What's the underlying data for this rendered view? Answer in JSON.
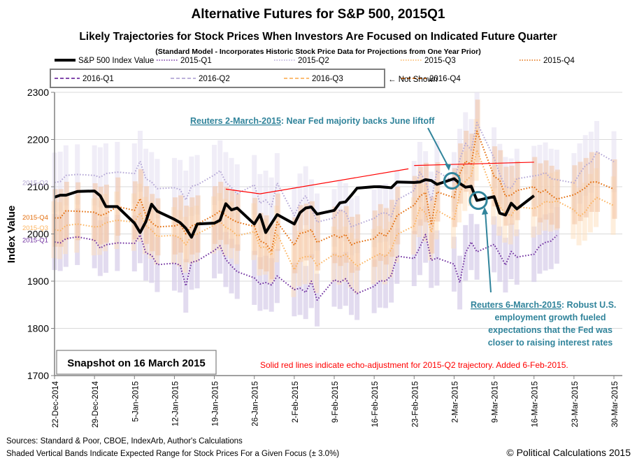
{
  "chart_data": {
    "type": "line",
    "title": "Alternative Futures for S&P 500, 2015Q1",
    "subtitle": "Likely Trajectories for Stock Prices When Investors Are Focused on Indicated Future Quarter",
    "subsubtitle": "(Standard Model - Incorporates Historic Stock Price Data for Projections from One Year Prior)",
    "xlabel": "",
    "ylabel": "Index Value",
    "ylim": [
      1700,
      2300
    ],
    "yticks": [
      1700,
      1800,
      1900,
      2000,
      2100,
      2200,
      2300
    ],
    "xticks": [
      "22-Dec-2014",
      "29-Dec-2014",
      "5-Jan-2015",
      "12-Jan-2015",
      "19-Jan-2015",
      "26-Jan-2015",
      "2-Feb-2015",
      "9-Feb-2015",
      "16-Feb-2015",
      "23-Feb-2015",
      "2-Mar-2015",
      "9-Mar-2015",
      "16-Mar-2015",
      "23-Mar-2015",
      "30-Mar-2015"
    ],
    "x_range_days": [
      0,
      98
    ],
    "grid": true,
    "legend": {
      "placement": "top",
      "row1": [
        {
          "label": "S&P 500 Index Value",
          "color": "#000000",
          "style": "solid"
        },
        {
          "label": "2015-Q1",
          "color": "#7030a0",
          "style": "dotted"
        },
        {
          "label": "2015-Q2",
          "color": "#b4a7d6",
          "style": "dotted"
        },
        {
          "label": "2015-Q3",
          "color": "#fcb461",
          "style": "dotted"
        },
        {
          "label": "2015-Q4",
          "color": "#e36c0a",
          "style": "dotted"
        }
      ],
      "row2": [
        {
          "label": "2016-Q1",
          "color": "#7030a0",
          "style": "dashed"
        },
        {
          "label": "2016-Q2",
          "color": "#b4a7d6",
          "style": "dashed"
        },
        {
          "label": "2016-Q3",
          "color": "#fcb461",
          "style": "dashed"
        },
        {
          "label": "2016-Q4",
          "color": "#e36c0a",
          "style": "dashed"
        }
      ],
      "row2_note": "← Not Shown"
    },
    "series_labels_left": [
      {
        "label": "2015-Q2",
        "value": 2110,
        "color": "#b4a7d6"
      },
      {
        "label": "2015-Q4",
        "value": 2036,
        "color": "#e36c0a"
      },
      {
        "label": "2015-Q3",
        "value": 2014,
        "color": "#fcb461"
      },
      {
        "label": "2015-Q1",
        "value": 1988,
        "color": "#7030a0"
      }
    ],
    "band_pct": 3.0,
    "x": [
      0,
      1,
      2,
      4,
      7,
      8,
      9,
      11,
      14,
      15,
      16,
      17,
      18,
      21,
      22,
      23,
      24,
      25,
      28,
      29,
      30,
      31,
      32,
      35,
      36,
      37,
      38,
      39,
      42,
      43,
      44,
      45,
      46,
      49,
      50,
      51,
      52,
      53,
      56,
      57,
      58,
      59,
      60,
      63,
      64,
      65,
      66,
      67,
      70,
      71,
      72,
      73,
      74,
      77,
      78,
      79,
      80,
      81,
      84,
      85,
      86,
      87,
      88,
      91,
      92,
      93,
      94,
      95,
      98
    ],
    "series": [
      {
        "name": "S&P 500 Index Value",
        "color": "#000000",
        "values": [
          2078,
          2082,
          2082,
          2090,
          2091,
          2081,
          2058,
          2058,
          2023,
          2003,
          2026,
          2063,
          2048,
          2031,
          2024,
          2012,
          1993,
          2021,
          2023,
          2029,
          2064,
          2051,
          2055,
          2021,
          2041,
          2003,
          2022,
          2041,
          2021,
          2045,
          2055,
          2057,
          2042,
          2050,
          2066,
          2068,
          2082,
          2097,
          2100,
          2100,
          2099,
          2098,
          2110,
          2109,
          2110,
          2115,
          2113,
          2105,
          2117,
          2107,
          2099,
          2101,
          2071,
          2079,
          2044,
          2040,
          2065,
          2053,
          2081,
          null,
          null,
          null,
          null,
          null,
          null,
          null,
          null,
          null,
          null
        ]
      },
      {
        "name": "2015-Q1",
        "color": "#7030a0",
        "values": [
          1983,
          1981,
          1990,
          1994,
          1987,
          1970,
          1977,
          1981,
          1980,
          1998,
          1960,
          1955,
          1935,
          1938,
          1934,
          1890,
          1940,
          1943,
          1965,
          1975,
          1946,
          1932,
          1920,
          1907,
          1894,
          1897,
          1892,
          1911,
          1882,
          1885,
          1876,
          1900,
          1860,
          1903,
          1898,
          1905,
          1885,
          1874,
          1889,
          1901,
          1900,
          1912,
          1953,
          1948,
          1972,
          1999,
          1944,
          1949,
          1936,
          1897,
          1960,
          1983,
          1962,
          1978,
          1957,
          1934,
          1963,
          1951,
          1957,
          1975,
          1982,
          1985,
          1997,
          null,
          null,
          null,
          null,
          null,
          null
        ]
      },
      {
        "name": "2015-Q2",
        "color": "#b4a7d6",
        "values": [
          2109,
          2111,
          2124,
          2126,
          2124,
          2120,
          2128,
          2131,
          2128,
          2154,
          2117,
          2110,
          2096,
          2098,
          2094,
          2072,
          2101,
          2104,
          2125,
          2134,
          2110,
          2098,
          2085,
          2104,
          2065,
          2072,
          2058,
          2108,
          2039,
          2066,
          2081,
          2054,
          2025,
          2034,
          2051,
          2046,
          2015,
          2020,
          2033,
          2043,
          2045,
          2037,
          2072,
          2092,
          2131,
          2112,
          2070,
          2133,
          2110,
          2158,
          2192,
          2178,
          2236,
          2161,
          2127,
          2100,
          2097,
          2117,
          2123,
          2125,
          2130,
          2117,
          2115,
          2108,
          2128,
          2145,
          2152,
          2174,
          2153
        ]
      },
      {
        "name": "2015-Q3",
        "color": "#fcb461",
        "values": [
          2009,
          2007,
          2018,
          2021,
          2015,
          2016,
          2024,
          2029,
          2025,
          2045,
          2018,
          2008,
          1995,
          1997,
          1991,
          1977,
          1997,
          2000,
          2019,
          2026,
          2014,
          2008,
          1996,
          2005,
          1971,
          1973,
          1955,
          2000,
          1924,
          1948,
          1952,
          1952,
          1933,
          1957,
          1951,
          1957,
          1944,
          1932,
          1952,
          1958,
          1952,
          1967,
          1999,
          2017,
          2055,
          2045,
          2004,
          2050,
          2030,
          2087,
          2112,
          2123,
          2178,
          2082,
          2058,
          2043,
          2039,
          2057,
          2054,
          2060,
          2069,
          2067,
          2070,
          2051,
          2037,
          2047,
          2065,
          2077,
          2060
        ]
      },
      {
        "name": "2015-Q4",
        "color": "#e36c0a",
        "values": [
          2034,
          2034,
          2049,
          2048,
          2046,
          2039,
          2043,
          2058,
          2050,
          2075,
          2040,
          2024,
          2015,
          2017,
          2021,
          2000,
          2017,
          2021,
          2040,
          2049,
          2039,
          2031,
          2025,
          2016,
          1985,
          1980,
          1963,
          2025,
          1976,
          2001,
          2004,
          2009,
          1982,
          1998,
          1992,
          1999,
          1977,
          1982,
          1990,
          2003,
          1995,
          2012,
          2039,
          2061,
          2080,
          2088,
          2019,
          2089,
          2077,
          2128,
          2154,
          2148,
          2218,
          2122,
          2114,
          2080,
          2082,
          2092,
          2100,
          2087,
          2093,
          2082,
          2074,
          2083,
          2090,
          2098,
          2110,
          2110,
          2095
        ]
      }
    ],
    "red_echo_lines": [
      {
        "from": [
          30,
          2095
        ],
        "to": [
          36,
          2085
        ]
      },
      {
        "from": [
          36,
          2085
        ],
        "to": [
          62,
          2138
        ]
      },
      {
        "from": [
          63,
          2145
        ],
        "to": [
          84,
          2152
        ]
      }
    ],
    "annotations": [
      {
        "id": "reuters-mar2",
        "link": "Reuters 2-March-2015",
        "text": ":  Near Fed majority backs June liftoff",
        "color": "#31849b",
        "circle_at": [
          70,
          2117
        ]
      },
      {
        "id": "reuters-mar6",
        "link": "Reuters 6-March-2015",
        "text": ":  Robust U.S.",
        "lines": [
          "employment growth fueled",
          "expectations that the Fed was",
          "closer to raising interest rates"
        ],
        "color": "#31849b",
        "circle_at": [
          74,
          2071
        ]
      },
      {
        "id": "red-note",
        "text": "Solid red lines indicate echo-adjustment for 2015-Q2 trajectory.  Added 6-Feb-2015.",
        "color": "#ff0000"
      }
    ],
    "snapshot_label": "Snapshot on  16 March 2015"
  },
  "footer": {
    "sources": "Sources: Standard & Poor, CBOE, IndexArb, Author's Calculations",
    "bands_note": "Shaded Vertical Bands Indicate Expected Range for Stock Prices For a Given Focus (± 3.0%)",
    "copyright": "© Political Calculations 2015"
  }
}
